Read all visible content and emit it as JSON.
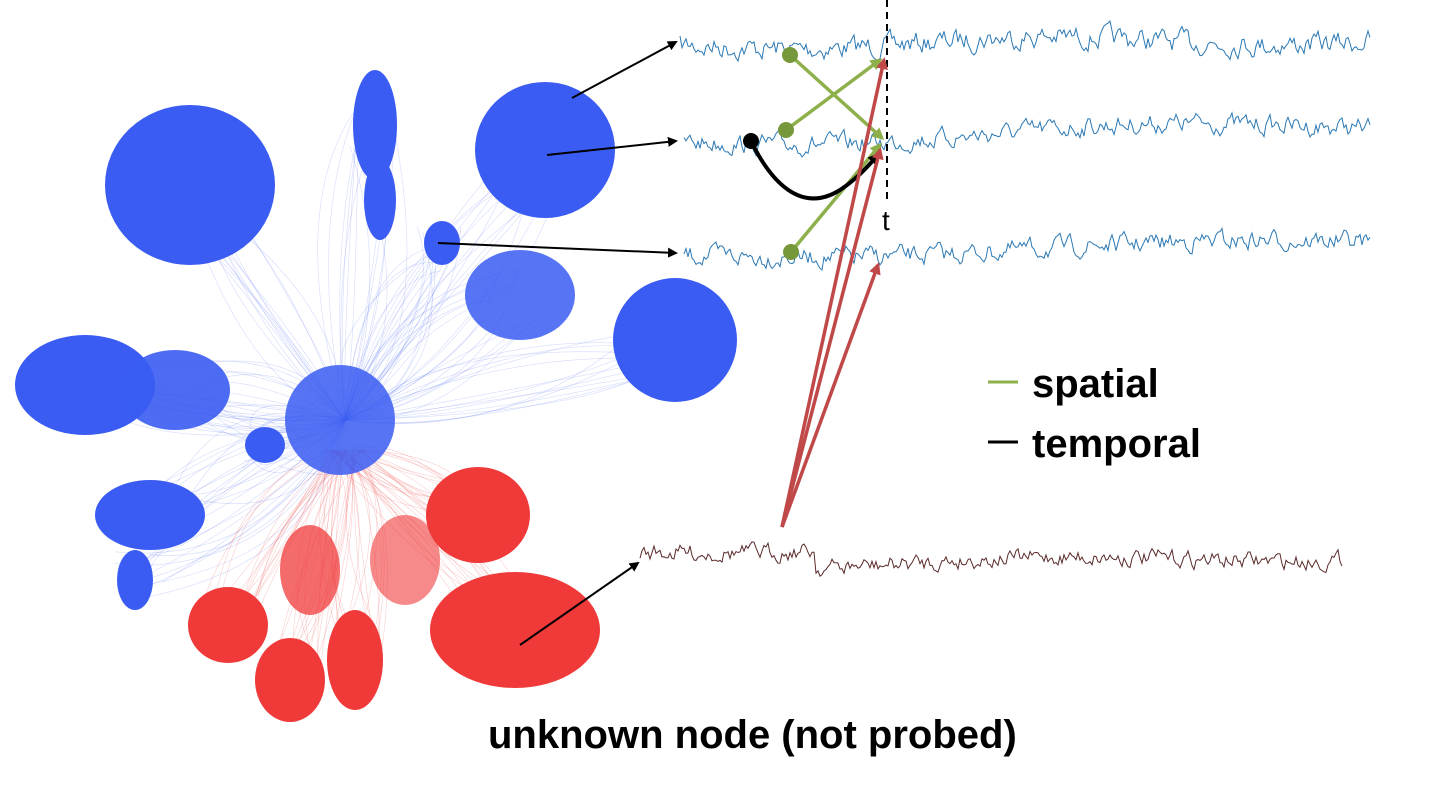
{
  "time_marker_label": "t",
  "legend": {
    "spatial_label": "spatial",
    "temporal_label": "temporal"
  },
  "unknown_node_label": "unknown node (not probed)",
  "colors": {
    "probed_cluster": "#3a5cf2",
    "unknown_cluster": "#f03a3a",
    "signal_probed": "#2a78b4",
    "signal_unknown": "#5a2a2a",
    "spatial": "#8db04a",
    "temporal": "#000000",
    "unknown_influence": "#c04848"
  }
}
